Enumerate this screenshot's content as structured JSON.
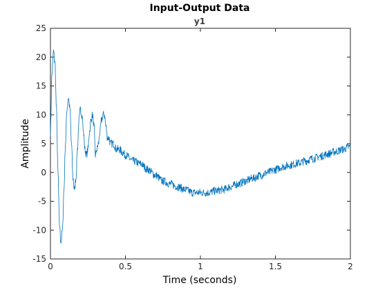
{
  "chart_data": {
    "type": "line",
    "title": "Input-Output Data",
    "subtitle": "y1",
    "xlabel": "Time (seconds)",
    "ylabel": "Amplitude",
    "xlim": [
      0,
      2
    ],
    "ylim": [
      -15,
      25
    ],
    "xticks": [
      0,
      0.5,
      1,
      1.5,
      2
    ],
    "xtick_labels": [
      "0",
      "0.5",
      "1",
      "1.5",
      "2"
    ],
    "yticks": [
      -15,
      -10,
      -5,
      0,
      5,
      10,
      15,
      20,
      25
    ],
    "ytick_labels": [
      "-15",
      "-10",
      "-5",
      "0",
      "5",
      "10",
      "15",
      "20",
      "25"
    ],
    "grid": false,
    "colors": {
      "series": "#0072BD",
      "axes": "#262626"
    },
    "series": [
      {
        "x": [
          0,
          0.01,
          0.02,
          0.03,
          0.04,
          0.05,
          0.06,
          0.07,
          0.08,
          0.09,
          0.1,
          0.11,
          0.12,
          0.13,
          0.14,
          0.15,
          0.16,
          0.17,
          0.18,
          0.19,
          0.2,
          0.21,
          0.22,
          0.23,
          0.24,
          0.25,
          0.26,
          0.27,
          0.28,
          0.29,
          0.3,
          0.31,
          0.32,
          0.33,
          0.34,
          0.35,
          0.36,
          0.37,
          0.38,
          0.39,
          0.4,
          0.42,
          0.44,
          0.46,
          0.48,
          0.5,
          0.55,
          0.6,
          0.65,
          0.7,
          0.75,
          0.8,
          0.85,
          0.9,
          0.95,
          1.0,
          1.05,
          1.1,
          1.15,
          1.2,
          1.25,
          1.3,
          1.35,
          1.4,
          1.45,
          1.5,
          1.55,
          1.6,
          1.65,
          1.7,
          1.75,
          1.8,
          1.85,
          1.9,
          1.95,
          2.0
        ],
        "y": [
          7,
          17,
          21,
          19,
          11,
          0,
          -9,
          -12,
          -10,
          -3,
          5,
          11,
          13,
          11,
          5,
          -1,
          -3,
          -1,
          4,
          9,
          11,
          10,
          7,
          4,
          3,
          4,
          7,
          9,
          10,
          8,
          3,
          4,
          5,
          7,
          9,
          10,
          10,
          8,
          6,
          6,
          5,
          5,
          4,
          4,
          3.5,
          3,
          2,
          1.5,
          0.5,
          -0.5,
          -1.5,
          -2,
          -2.5,
          -3,
          -3.5,
          -3.5,
          -3.5,
          -3.2,
          -3,
          -2.5,
          -2,
          -1.5,
          -1,
          -0.5,
          0,
          0.5,
          1,
          1.3,
          1.6,
          2,
          2.4,
          2.8,
          3.2,
          3.6,
          4,
          4.5
        ]
      }
    ]
  }
}
